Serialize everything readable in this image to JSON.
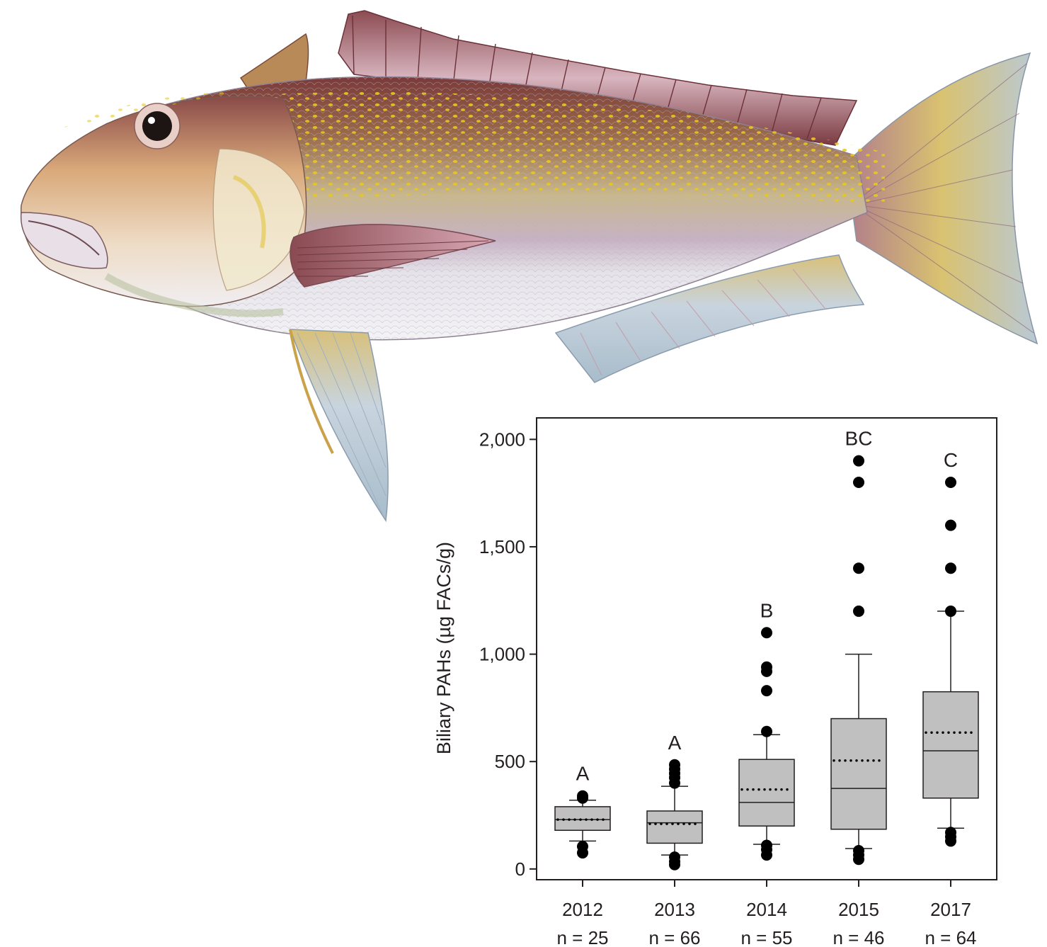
{
  "illustration": {
    "subject": "tilefish-illustration",
    "colors": {
      "body_light": "#ecebf0",
      "body_mid": "#c9b88a",
      "back_dark": "#7b3a3a",
      "spots": "#e8c81e",
      "fin_pink": "#c99aa6",
      "fin_blue": "#b9c9d6"
    }
  },
  "chart_data": {
    "type": "box",
    "title": "",
    "xlabel": "",
    "ylabel": "Biliary PAHs (µg FACs/g)",
    "ylim": [
      -50,
      2100
    ],
    "yticks": [
      0,
      500,
      1000,
      1500,
      2000
    ],
    "ytick_labels": [
      "0",
      "500",
      "1,000",
      "1,500",
      "2,000"
    ],
    "categories": [
      "2012",
      "2013",
      "2014",
      "2015",
      "2017"
    ],
    "sample_sizes": [
      "n = 25",
      "n = 66",
      "n = 55",
      "n = 46",
      "n = 64"
    ],
    "significance_letters": [
      "A",
      "A",
      "B",
      "BC",
      "C"
    ],
    "boxes": [
      {
        "whisker_low": 130,
        "q1": 180,
        "median": 230,
        "mean": 230,
        "q3": 290,
        "whisker_high": 320,
        "outliers": [
          75,
          105,
          330,
          340
        ]
      },
      {
        "whisker_low": 65,
        "q1": 120,
        "median": 215,
        "mean": 210,
        "q3": 270,
        "whisker_high": 385,
        "outliers": [
          20,
          35,
          55,
          400,
          425,
          445,
          465,
          485
        ]
      },
      {
        "whisker_low": 115,
        "q1": 200,
        "median": 310,
        "mean": 370,
        "q3": 510,
        "whisker_high": 625,
        "outliers": [
          65,
          90,
          110,
          640,
          830,
          920,
          940,
          1100
        ]
      },
      {
        "whisker_low": 95,
        "q1": 185,
        "median": 375,
        "mean": 505,
        "q3": 700,
        "whisker_high": 1000,
        "outliers": [
          45,
          65,
          85,
          1200,
          1400,
          1800,
          1900
        ]
      },
      {
        "whisker_low": 190,
        "q1": 330,
        "median": 550,
        "mean": 635,
        "q3": 825,
        "whisker_high": 1200,
        "outliers": [
          130,
          150,
          170,
          1200,
          1400,
          1600,
          1800
        ]
      }
    ],
    "box_fill": "#c0c0c0",
    "grid": false,
    "legend": "none"
  }
}
